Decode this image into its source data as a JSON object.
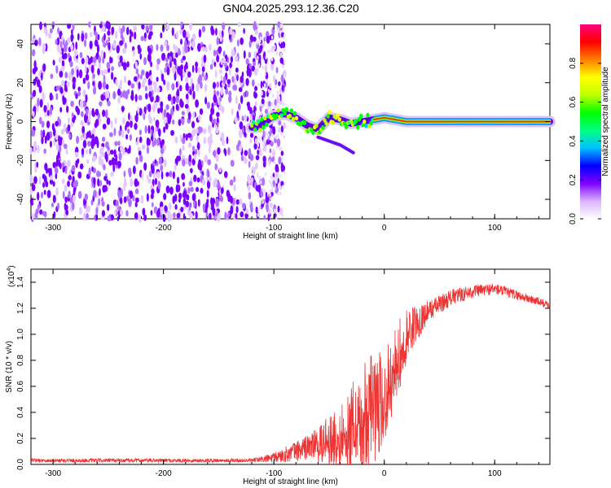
{
  "title": "GN04.2025.293.12.36.C20",
  "chart_data": [
    {
      "type": "heatmap",
      "name": "spectrogram",
      "xlabel": "Height of straight line (km)",
      "ylabel": "Frequency (Hz)",
      "xlim": [
        -320,
        150
      ],
      "ylim": [
        -50,
        50
      ],
      "xticks": [
        -300,
        -200,
        -100,
        0,
        100
      ],
      "xtick_labels": [
        "-300",
        "-200",
        "-100",
        "0",
        "100"
      ],
      "yticks": [
        -40,
        -20,
        0,
        20,
        40
      ],
      "ytick_labels": [
        "-40",
        "-20",
        "0",
        "20",
        "40"
      ],
      "noise_region_x": [
        -320,
        -100
      ],
      "signal_band": {
        "x_start": -120,
        "x_end": 150,
        "center_freq_hz": 0,
        "wander_region_x": [
          -120,
          -10
        ],
        "approx_points": [
          {
            "x": -115,
            "f": -3
          },
          {
            "x": -100,
            "f": 3
          },
          {
            "x": -90,
            "f": 4
          },
          {
            "x": -80,
            "f": 2
          },
          {
            "x": -70,
            "f": -2
          },
          {
            "x": -60,
            "f": -4
          },
          {
            "x": -50,
            "f": 2
          },
          {
            "x": -40,
            "f": 1
          },
          {
            "x": -30,
            "f": -1
          },
          {
            "x": -20,
            "f": 0
          },
          {
            "x": 0,
            "f": 2
          },
          {
            "x": 20,
            "f": 0
          },
          {
            "x": 150,
            "f": 0
          }
        ],
        "tail": [
          {
            "x": -60,
            "f": -8
          },
          {
            "x": -40,
            "f": -12
          },
          {
            "x": -28,
            "f": -16
          }
        ]
      },
      "colorbar": {
        "label": "Normalized spectral amplitude",
        "range": [
          0,
          1
        ],
        "ticks": [
          0.0,
          0.2,
          0.4,
          0.6,
          0.8
        ],
        "tick_labels": [
          "0.0",
          "0.2",
          "0.4",
          "0.6",
          "0.8"
        ],
        "colormap": [
          "#ffffff",
          "#d9b3ff",
          "#8000ff",
          "#0000ff",
          "#00c0ff",
          "#00ff80",
          "#00ff00",
          "#c0ff00",
          "#ffff00",
          "#ff8000",
          "#ff0000",
          "#ff0080"
        ]
      }
    },
    {
      "type": "line",
      "name": "snr",
      "xlabel": "Height of straight line (km)",
      "ylabel": "SNR (10 * v/v)",
      "scale_label": "(x10",
      "scale_exponent": "4",
      "scale_close": ")",
      "xlim": [
        -320,
        150
      ],
      "ylim": [
        0,
        1.5
      ],
      "xticks": [
        -300,
        -200,
        -100,
        0,
        100
      ],
      "xtick_labels": [
        "-300",
        "-200",
        "-100",
        "0",
        "100"
      ],
      "yticks": [
        0.0,
        0.2,
        0.4,
        0.6,
        0.8,
        1.0,
        1.2,
        1.4
      ],
      "ytick_labels": [
        "0.0",
        "0.2",
        "0.4",
        "0.6",
        "0.8",
        "1.0",
        "1.2",
        "1.4"
      ],
      "color": "#ee3333",
      "trend": [
        {
          "x": -320,
          "y": 0.03
        },
        {
          "x": -200,
          "y": 0.03
        },
        {
          "x": -120,
          "y": 0.03
        },
        {
          "x": -100,
          "y": 0.05
        },
        {
          "x": -80,
          "y": 0.1
        },
        {
          "x": -60,
          "y": 0.16
        },
        {
          "x": -40,
          "y": 0.25
        },
        {
          "x": -20,
          "y": 0.4
        },
        {
          "x": 0,
          "y": 0.6
        },
        {
          "x": 10,
          "y": 0.82
        },
        {
          "x": 20,
          "y": 1.0
        },
        {
          "x": 40,
          "y": 1.18
        },
        {
          "x": 60,
          "y": 1.28
        },
        {
          "x": 80,
          "y": 1.33
        },
        {
          "x": 100,
          "y": 1.35
        },
        {
          "x": 120,
          "y": 1.3
        },
        {
          "x": 140,
          "y": 1.25
        },
        {
          "x": 150,
          "y": 1.22
        }
      ],
      "noise_amplitude": [
        {
          "x": -320,
          "a": 0.015
        },
        {
          "x": -120,
          "a": 0.015
        },
        {
          "x": -100,
          "a": 0.04
        },
        {
          "x": -60,
          "a": 0.12
        },
        {
          "x": -30,
          "a": 0.3
        },
        {
          "x": -10,
          "a": 0.4
        },
        {
          "x": 10,
          "a": 0.25
        },
        {
          "x": 40,
          "a": 0.08
        },
        {
          "x": 80,
          "a": 0.05
        },
        {
          "x": 150,
          "a": 0.03
        }
      ]
    }
  ]
}
